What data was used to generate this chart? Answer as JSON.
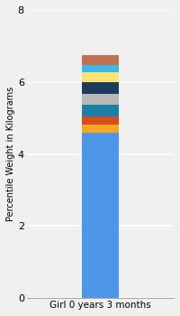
{
  "category": "Girl 0 years 3 months",
  "segments": [
    {
      "value": 4.6,
      "color": "#4D96E8"
    },
    {
      "value": 0.22,
      "color": "#F5A623"
    },
    {
      "value": 0.22,
      "color": "#D94E1F"
    },
    {
      "value": 0.32,
      "color": "#1B7FA6"
    },
    {
      "value": 0.32,
      "color": "#B8B8B8"
    },
    {
      "value": 0.32,
      "color": "#1E3A5F"
    },
    {
      "value": 0.28,
      "color": "#FAE373"
    },
    {
      "value": 0.18,
      "color": "#3DB8EA"
    },
    {
      "value": 0.28,
      "color": "#C0714F"
    }
  ],
  "ylabel": "Percentile Weight in Kilograms",
  "ylim": [
    0,
    8
  ],
  "yticks": [
    0,
    2,
    4,
    6,
    8
  ],
  "background_color": "#F0F0F0",
  "ylabel_fontsize": 7,
  "tick_fontsize": 8,
  "xlabel_fontsize": 7.5,
  "bar_width": 0.35,
  "grid_color": "#FFFFFF",
  "spine_color": "#AAAAAA"
}
